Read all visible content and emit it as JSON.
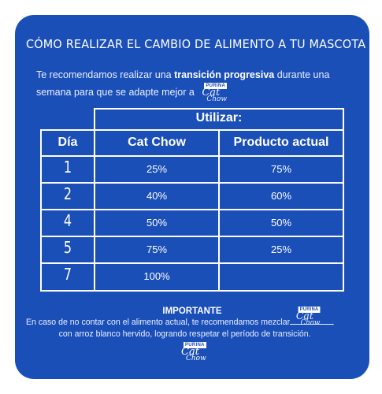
{
  "title": "CÓMO REALIZAR EL CAMBIO DE ALIMENTO A TU MASCOTA",
  "intro": {
    "before": "Te recomendamos realizar una ",
    "bold": "transición progresiva",
    "after": " durante una semana para que se adapte mejor a"
  },
  "logo": {
    "brand": "PURINA",
    "line1": "Cat",
    "line2": "Chow"
  },
  "table": {
    "group_header": "Utilizar:",
    "columns": [
      "Día",
      "Cat Chow",
      "Producto actual"
    ],
    "rows": [
      {
        "day": "1",
        "cat_chow": "25%",
        "actual": "75%"
      },
      {
        "day": "2",
        "cat_chow": "40%",
        "actual": "60%"
      },
      {
        "day": "4",
        "cat_chow": "50%",
        "actual": "50%"
      },
      {
        "day": "5",
        "cat_chow": "75%",
        "actual": "25%"
      },
      {
        "day": "7",
        "cat_chow": "100%",
        "actual": ""
      }
    ]
  },
  "important": {
    "heading": "IMPORTANTE",
    "line1": "En caso de no contar con el alimento actual, te recomendamos mezclar",
    "line2": "con arroz blanco hervido, logrando respetar el período de transición."
  },
  "colors": {
    "background": "#1b4fb8",
    "text": "#ffffff"
  }
}
